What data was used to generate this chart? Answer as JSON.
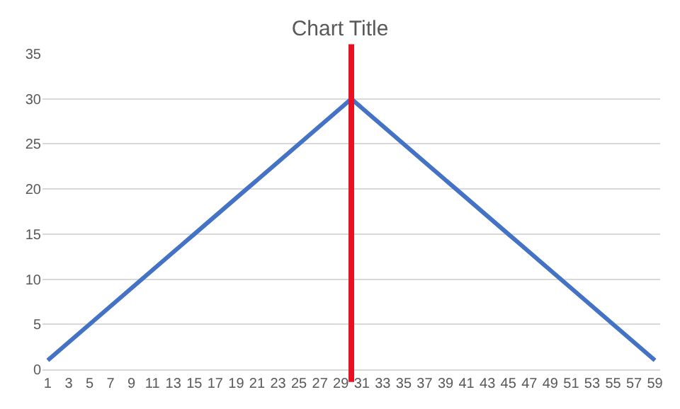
{
  "chart_data": {
    "type": "line",
    "title": "Chart Title",
    "x": [
      1,
      2,
      3,
      4,
      5,
      6,
      7,
      8,
      9,
      10,
      11,
      12,
      13,
      14,
      15,
      16,
      17,
      18,
      19,
      20,
      21,
      22,
      23,
      24,
      25,
      26,
      27,
      28,
      29,
      30,
      31,
      32,
      33,
      34,
      35,
      36,
      37,
      38,
      39,
      40,
      41,
      42,
      43,
      44,
      45,
      46,
      47,
      48,
      49,
      50,
      51,
      52,
      53,
      54,
      55,
      56,
      57,
      58,
      59
    ],
    "series": [
      {
        "color": "#4472c4",
        "values": [
          1,
          2,
          3,
          4,
          5,
          6,
          7,
          8,
          9,
          10,
          11,
          12,
          13,
          14,
          15,
          16,
          17,
          18,
          19,
          20,
          21,
          22,
          23,
          24,
          25,
          26,
          27,
          28,
          29,
          30,
          29,
          28,
          27,
          26,
          25,
          24,
          23,
          22,
          21,
          20,
          19,
          18,
          17,
          16,
          15,
          14,
          13,
          12,
          11,
          10,
          9,
          8,
          7,
          6,
          5,
          4,
          3,
          2,
          1
        ]
      }
    ],
    "xlim": [
      0.5,
      59.5
    ],
    "xticks": [
      1,
      3,
      5,
      7,
      9,
      11,
      13,
      15,
      17,
      19,
      21,
      23,
      25,
      27,
      29,
      31,
      33,
      35,
      37,
      39,
      41,
      43,
      45,
      47,
      49,
      51,
      53,
      55,
      57,
      59
    ],
    "ylim": [
      0,
      35
    ],
    "yticks": [
      0,
      5,
      10,
      15,
      20,
      25,
      30,
      35
    ],
    "ref_lines": [
      {
        "axis": "x",
        "value": 30,
        "color": "#e81123"
      }
    ],
    "grid": "y",
    "marker": "none",
    "line_style": "solid"
  }
}
